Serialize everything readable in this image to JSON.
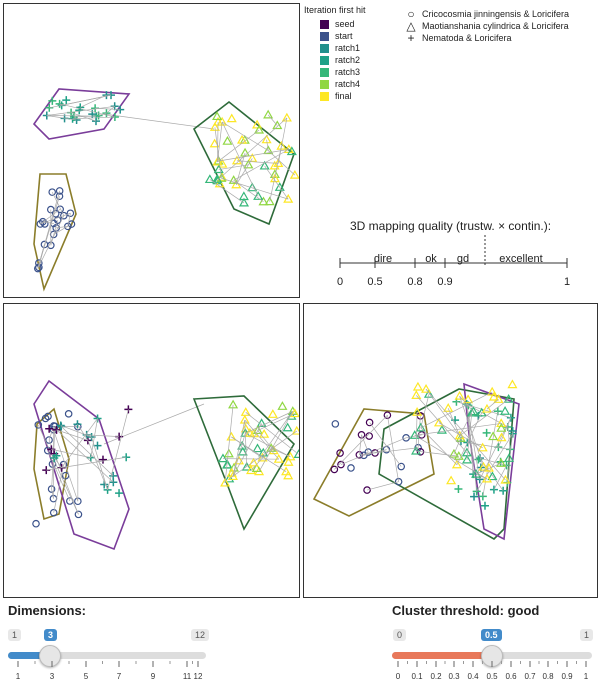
{
  "legend": {
    "iteration_title": "Iteration first hit",
    "iterations": [
      {
        "label": "seed",
        "color": "#440154"
      },
      {
        "label": "start",
        "color": "#3b528b"
      },
      {
        "label": "ratch1",
        "color": "#21908c"
      },
      {
        "label": "ratch2",
        "color": "#1fa187"
      },
      {
        "label": "ratch3",
        "color": "#35b779"
      },
      {
        "label": "ratch4",
        "color": "#90d743"
      },
      {
        "label": "final",
        "color": "#fde725"
      }
    ],
    "shapes": [
      {
        "glyph": "circle-icon",
        "label": "Cricocosmia jinningensis & Loricifera"
      },
      {
        "glyph": "triangle-icon",
        "label": "Maotianshania cylindrica & Loricifera"
      },
      {
        "glyph": "plus-icon",
        "label": "Nematoda & Loricifera"
      }
    ]
  },
  "quality": {
    "title": "3D mapping quality (trustw. × contin.):",
    "bands": [
      "dire",
      "ok",
      "gd",
      "excellent"
    ],
    "ticks": [
      "0",
      "0.5",
      "0.8",
      "0.9",
      "1"
    ],
    "gradient_colors": [
      "#ef8a62",
      "#d9b340",
      "#6fbf3f",
      "#2ebd4f"
    ]
  },
  "dimensions": {
    "title": "Dimensions:",
    "min_label": "1",
    "max_label": "12",
    "value_label": "3",
    "value": 3,
    "min": 1,
    "max": 12,
    "ticks": [
      "1",
      "3",
      "5",
      "7",
      "9",
      "11",
      "12"
    ],
    "fill_color": "#428bca"
  },
  "cluster": {
    "title": "Cluster threshold: good",
    "min_label": "0",
    "max_label": "1",
    "value_label": "0.5",
    "value": 0.5,
    "ticks": [
      "0",
      "0.1",
      "0.2",
      "0.3",
      "0.4",
      "0.5",
      "0.6",
      "0.7",
      "0.8",
      "0.9",
      "1"
    ],
    "fill_color": "#e8785a"
  }
}
